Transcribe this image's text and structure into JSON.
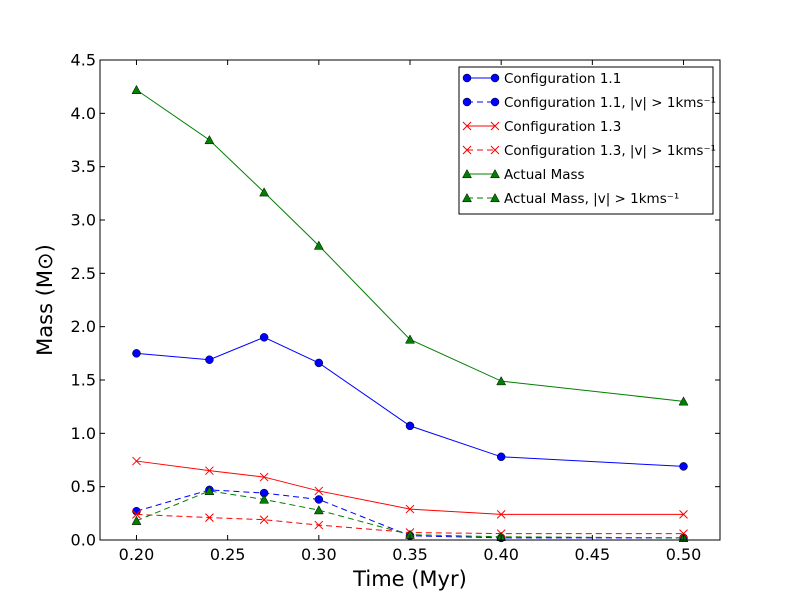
{
  "chart_data": {
    "type": "line",
    "title": "",
    "xlabel": "Time (Myr)",
    "ylabel": "Mass (M⊙)",
    "xlim": [
      0.18,
      0.52
    ],
    "ylim": [
      0.0,
      4.5
    ],
    "xticks": [
      "0.20",
      "0.25",
      "0.30",
      "0.35",
      "0.40",
      "0.45",
      "0.50"
    ],
    "yticks": [
      "0.0",
      "0.5",
      "1.0",
      "1.5",
      "2.0",
      "2.5",
      "3.0",
      "3.5",
      "4.0",
      "4.5"
    ],
    "legend_position": "top-right",
    "x": [
      0.2,
      0.24,
      0.27,
      0.3,
      0.35,
      0.4,
      0.5
    ],
    "series": [
      {
        "name": "Configuration 1.1",
        "color": "#0000ff",
        "marker": "circle",
        "dashed": false,
        "values": [
          1.75,
          1.69,
          1.9,
          1.66,
          1.07,
          0.78,
          0.69
        ]
      },
      {
        "name": "Configuration 1.1, |v| > 1kms⁻¹",
        "color": "#0000ff",
        "marker": "circle",
        "dashed": true,
        "values": [
          0.27,
          0.47,
          0.44,
          0.38,
          0.04,
          0.02,
          0.02
        ]
      },
      {
        "name": "Configuration 1.3",
        "color": "#ff0000",
        "marker": "x",
        "dashed": false,
        "values": [
          0.74,
          0.65,
          0.59,
          0.46,
          0.29,
          0.24,
          0.24
        ]
      },
      {
        "name": "Configuration 1.3, |v| > 1kms⁻¹",
        "color": "#ff0000",
        "marker": "x",
        "dashed": true,
        "values": [
          0.24,
          0.21,
          0.19,
          0.14,
          0.07,
          0.06,
          0.06
        ]
      },
      {
        "name": "Actual Mass",
        "color": "#007f00",
        "marker": "triangle",
        "dashed": false,
        "values": [
          4.22,
          3.75,
          3.26,
          2.76,
          1.88,
          1.49,
          1.3
        ]
      },
      {
        "name": "Actual Mass, |v| > 1kms⁻¹",
        "color": "#007f00",
        "marker": "triangle",
        "dashed": true,
        "values": [
          0.18,
          0.46,
          0.38,
          0.28,
          0.05,
          0.03,
          0.02
        ]
      }
    ]
  }
}
